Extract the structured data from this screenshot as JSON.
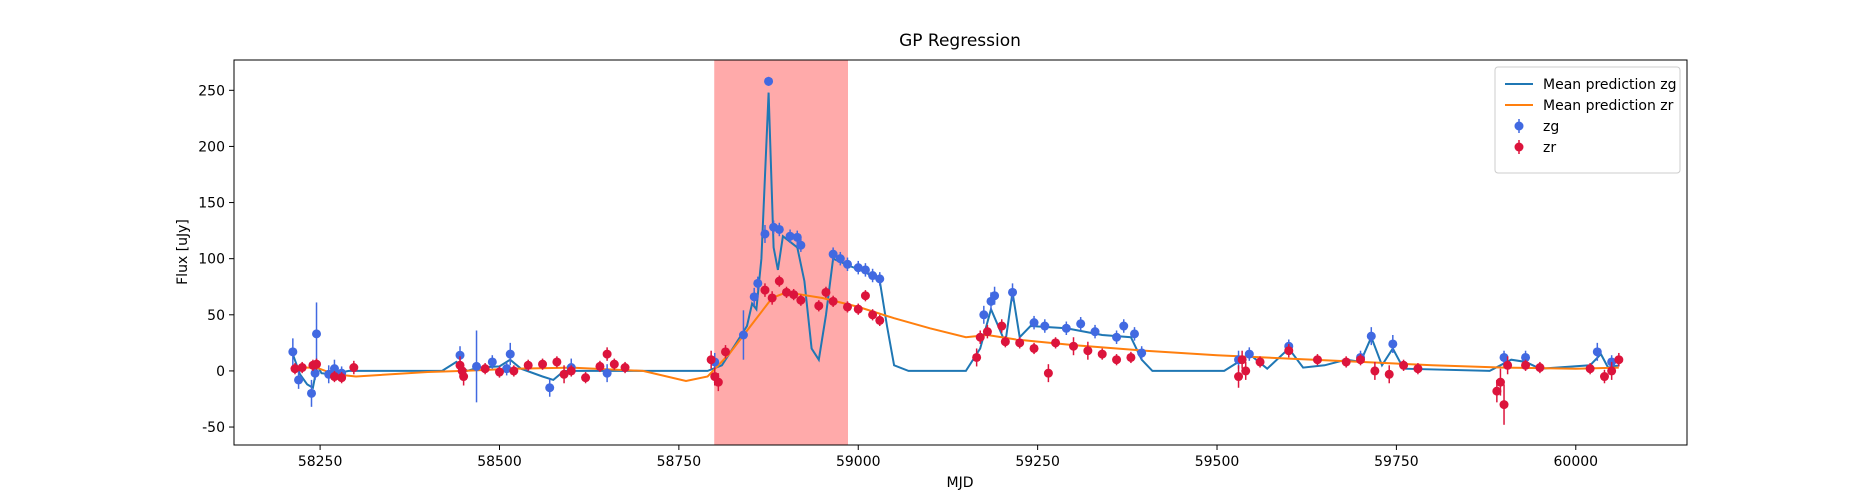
{
  "chart_data": {
    "type": "line",
    "title": "GP Regression",
    "xlabel": "MJD",
    "ylabel": "Flux [uJy]",
    "xlim": [
      58130,
      60155
    ],
    "ylim": [
      -66,
      277
    ],
    "xticks": [
      58250,
      58500,
      58750,
      59000,
      59250,
      59500,
      59750,
      60000
    ],
    "yticks": [
      -50,
      0,
      50,
      100,
      150,
      200,
      250
    ],
    "shaded_span": [
      58800,
      58985
    ],
    "span_color": "#ffaaaa",
    "legend": "upper right",
    "series": [
      {
        "name": "Mean prediction zg",
        "type": "line",
        "color": "#1f77b4",
        "x": [
          58212,
          58222,
          58232,
          58240,
          58246,
          58252,
          58265,
          58290,
          58420,
          58440,
          58455,
          58470,
          58500,
          58515,
          58530,
          58560,
          58575,
          58590,
          58650,
          58700,
          58790,
          58810,
          58830,
          58845,
          58852,
          58858,
          58865,
          58875,
          58882,
          58888,
          58895,
          58905,
          58915,
          58925,
          58935,
          58945,
          58955,
          58965,
          58990,
          59010,
          59030,
          59040,
          59050,
          59070,
          59150,
          59170,
          59185,
          59195,
          59205,
          59215,
          59225,
          59240,
          59290,
          59340,
          59380,
          59395,
          59410,
          59510,
          59530,
          59545,
          59570,
          59600,
          59620,
          59650,
          59680,
          59700,
          59715,
          59730,
          59745,
          59760,
          59880,
          59910,
          59930,
          59950,
          60020,
          60035,
          60045,
          60060
        ],
        "values": [
          15,
          -3,
          -12,
          -15,
          5,
          -2,
          -3,
          0,
          0,
          8,
          0,
          3,
          4,
          10,
          2,
          -5,
          -8,
          0,
          0,
          0,
          0,
          5,
          25,
          40,
          60,
          55,
          100,
          248,
          110,
          90,
          120,
          115,
          110,
          80,
          20,
          10,
          50,
          100,
          93,
          88,
          80,
          40,
          5,
          0,
          0,
          20,
          55,
          40,
          25,
          70,
          30,
          40,
          38,
          32,
          30,
          10,
          0,
          0,
          8,
          15,
          2,
          20,
          3,
          5,
          10,
          8,
          30,
          5,
          20,
          2,
          0,
          10,
          8,
          2,
          5,
          15,
          3,
          5
        ]
      },
      {
        "name": "Mean prediction zr",
        "type": "line",
        "color": "#ff7f0e",
        "x": [
          58212,
          58245,
          58270,
          58300,
          58400,
          58450,
          58520,
          58600,
          58700,
          58760,
          58790,
          58820,
          58850,
          58880,
          58900,
          58950,
          59000,
          59050,
          59100,
          59150,
          59180,
          59220,
          59300,
          59400,
          59500,
          59600,
          59700,
          59800,
          59900,
          60000,
          60060
        ],
        "values": [
          3,
          3,
          -3,
          -5,
          -1,
          0,
          2,
          3,
          0,
          -9,
          -5,
          15,
          40,
          65,
          70,
          65,
          57,
          47,
          38,
          30,
          32,
          28,
          23,
          18,
          14,
          11,
          8,
          5,
          3,
          2,
          3
        ]
      },
      {
        "name": "zg",
        "type": "errorbar",
        "color": "#4169e1",
        "x": [
          58212,
          58220,
          58238,
          58243,
          58245,
          58262,
          58270,
          58280,
          58445,
          58468,
          58490,
          58510,
          58515,
          58570,
          58600,
          58650,
          58800,
          58840,
          58855,
          58860,
          58870,
          58875,
          58882,
          58890,
          58905,
          58915,
          58920,
          58965,
          58975,
          58985,
          59000,
          59010,
          59020,
          59030,
          59175,
          59185,
          59190,
          59215,
          59245,
          59260,
          59290,
          59310,
          59330,
          59360,
          59370,
          59385,
          59395,
          59530,
          59545,
          59600,
          59700,
          59715,
          59745,
          59900,
          59930,
          60030,
          60050
        ],
        "values": [
          17,
          -8,
          -20,
          -2,
          33,
          -3,
          2,
          -2,
          14,
          4,
          8,
          2,
          15,
          -15,
          3,
          -2,
          8,
          32,
          66,
          78,
          122,
          258,
          128,
          126,
          120,
          119,
          112,
          104,
          100,
          95,
          92,
          90,
          85,
          82,
          50,
          62,
          67,
          70,
          43,
          40,
          38,
          42,
          35,
          30,
          40,
          33,
          16,
          10,
          15,
          22,
          12,
          31,
          24,
          12,
          12,
          17,
          8
        ],
        "errors": [
          12,
          8,
          12,
          6,
          28,
          8,
          8,
          6,
          8,
          32,
          6,
          6,
          10,
          8,
          8,
          8,
          8,
          22,
          8,
          6,
          8,
          4,
          6,
          6,
          6,
          6,
          6,
          6,
          6,
          6,
          6,
          6,
          6,
          6,
          8,
          8,
          8,
          8,
          6,
          6,
          6,
          6,
          6,
          6,
          6,
          6,
          6,
          8,
          6,
          6,
          6,
          8,
          8,
          6,
          6,
          8,
          6
        ]
      },
      {
        "name": "zr",
        "type": "errorbar",
        "color": "#dc143c",
        "x": [
          58215,
          58225,
          58240,
          58245,
          58270,
          58280,
          58297,
          58445,
          58448,
          58450,
          58480,
          58500,
          58520,
          58540,
          58560,
          58580,
          58590,
          58600,
          58620,
          58640,
          58650,
          58660,
          58675,
          58795,
          58800,
          58805,
          58815,
          58870,
          58880,
          58890,
          58900,
          58910,
          58920,
          58945,
          58955,
          58965,
          58985,
          59000,
          59010,
          59020,
          59030,
          59165,
          59170,
          59180,
          59200,
          59205,
          59225,
          59245,
          59265,
          59275,
          59300,
          59320,
          59340,
          59360,
          59380,
          59530,
          59535,
          59540,
          59560,
          59600,
          59640,
          59680,
          59700,
          59720,
          59740,
          59760,
          59780,
          59890,
          59895,
          59900,
          59905,
          59930,
          59950,
          60020,
          60040,
          60050,
          60060
        ],
        "values": [
          2,
          3,
          5,
          6,
          -5,
          -6,
          3,
          5,
          0,
          -5,
          2,
          -1,
          0,
          5,
          6,
          8,
          -3,
          0,
          -6,
          4,
          15,
          6,
          3,
          10,
          -5,
          -10,
          17,
          72,
          65,
          80,
          70,
          68,
          63,
          58,
          70,
          62,
          57,
          55,
          67,
          50,
          45,
          12,
          30,
          35,
          40,
          26,
          25,
          20,
          -2,
          25,
          22,
          18,
          15,
          10,
          12,
          -5,
          10,
          0,
          8,
          18,
          10,
          8,
          10,
          0,
          -3,
          5,
          2,
          -18,
          -10,
          -30,
          5,
          5,
          3,
          2,
          -5,
          0,
          10
        ],
        "errors": [
          5,
          5,
          5,
          5,
          5,
          5,
          6,
          8,
          8,
          8,
          5,
          5,
          5,
          5,
          5,
          5,
          8,
          5,
          5,
          5,
          6,
          5,
          5,
          8,
          8,
          8,
          6,
          6,
          6,
          5,
          5,
          5,
          5,
          5,
          5,
          5,
          5,
          5,
          5,
          5,
          5,
          8,
          6,
          6,
          6,
          5,
          5,
          5,
          8,
          5,
          8,
          8,
          5,
          5,
          5,
          10,
          8,
          8,
          5,
          6,
          5,
          5,
          5,
          8,
          8,
          5,
          5,
          10,
          12,
          18,
          8,
          5,
          5,
          5,
          6,
          8,
          6
        ]
      }
    ]
  }
}
